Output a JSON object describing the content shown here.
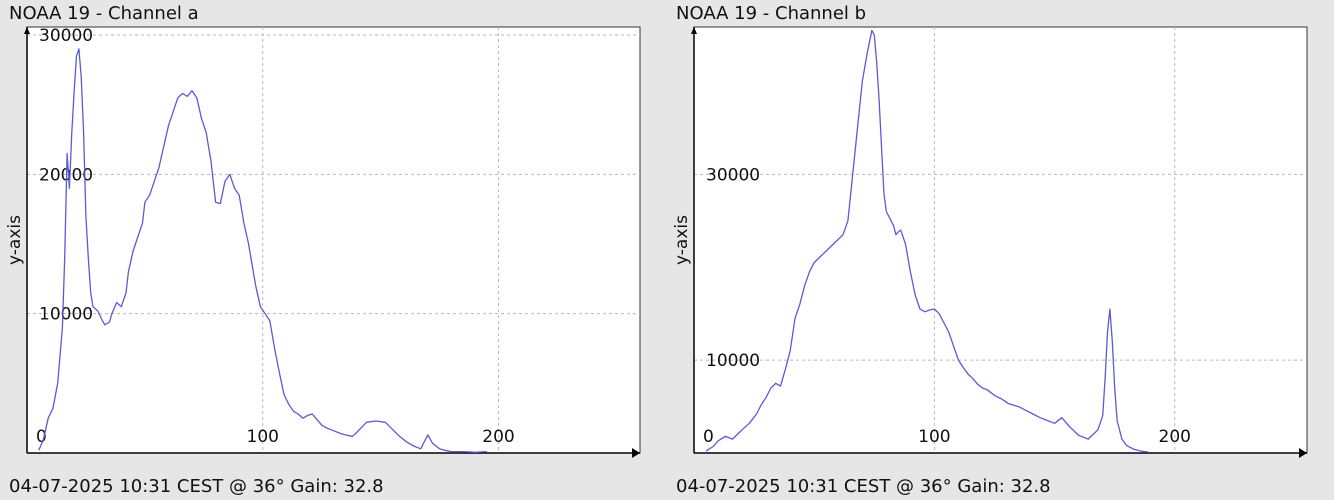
{
  "chart_data": [
    {
      "type": "line",
      "title": "NOAA 19 - Channel a",
      "ylabel": "y-axis",
      "footer": "04-07-2025 10:31 CEST @ 36° Gain: 32.8",
      "xlim": [
        0,
        260
      ],
      "ylim": [
        0,
        30000
      ],
      "xticks": [
        0,
        100,
        200
      ],
      "yticks": [
        10000,
        20000,
        30000
      ],
      "tick_labels": {
        "x0": "0",
        "x100": "100",
        "x200": "200",
        "y10000": "10000",
        "y20000": "20000",
        "y30000": "30000"
      },
      "grid": true,
      "line_color": "#5a5ad6",
      "series": [
        {
          "x": [
            5,
            7,
            9,
            11,
            13,
            15,
            16,
            17,
            18,
            19,
            20,
            21,
            22,
            23,
            24,
            25,
            26,
            27,
            28,
            30,
            32,
            33,
            35,
            36,
            38,
            40,
            42,
            43,
            45,
            47,
            49,
            50,
            52,
            54,
            56,
            58,
            60,
            62,
            64,
            66,
            68,
            70,
            72,
            74,
            76,
            77,
            78,
            80,
            82,
            84,
            86,
            88,
            90,
            92,
            94,
            96,
            97,
            99,
            101,
            103,
            105,
            107,
            109,
            111,
            113,
            115,
            117,
            119,
            121,
            123,
            125,
            127,
            130,
            133,
            135,
            138,
            140,
            144,
            148,
            152,
            155,
            158,
            161,
            164,
            167,
            170,
            172,
            175,
            177,
            180,
            185,
            190,
            195
          ],
          "y": [
            200,
            1000,
            2500,
            3200,
            5000,
            9000,
            14000,
            21500,
            19000,
            23000,
            26000,
            28500,
            29000,
            27000,
            23000,
            17000,
            14000,
            11500,
            10500,
            10200,
            9500,
            9200,
            9400,
            10000,
            10800,
            10500,
            11500,
            13000,
            14500,
            15500,
            16500,
            18000,
            18500,
            19500,
            20500,
            22000,
            23500,
            24500,
            25500,
            25800,
            25600,
            26000,
            25500,
            24000,
            23000,
            22000,
            21000,
            18000,
            17900,
            19500,
            20000,
            19000,
            18500,
            16500,
            15000,
            13000,
            12000,
            10500,
            10000,
            9500,
            7500,
            5800,
            4200,
            3500,
            3000,
            2800,
            2500,
            2700,
            2800,
            2400,
            2000,
            1800,
            1600,
            1400,
            1300,
            1200,
            1500,
            2200,
            2300,
            2200,
            1700,
            1200,
            800,
            500,
            300,
            1300,
            700,
            300,
            200,
            100,
            100,
            50,
            100
          ]
        }
      ]
    },
    {
      "type": "line",
      "title": "NOAA 19 - Channel b",
      "ylabel": "y-axis",
      "footer": "04-07-2025 10:31 CEST @ 36° Gain: 32.8",
      "xlim": [
        0,
        255
      ],
      "ylim": [
        0,
        45000
      ],
      "xticks": [
        0,
        100,
        200
      ],
      "yticks": [
        10000,
        30000
      ],
      "tick_labels": {
        "x0": "0",
        "x100": "100",
        "x200": "200",
        "y10000": "10000",
        "y30000": "30000"
      },
      "grid": true,
      "line_color": "#5a5ad6",
      "series": [
        {
          "x": [
            5,
            8,
            10,
            13,
            16,
            18,
            20,
            23,
            26,
            28,
            30,
            32,
            34,
            36,
            38,
            40,
            42,
            44,
            46,
            48,
            50,
            52,
            54,
            56,
            58,
            60,
            62,
            64,
            66,
            68,
            70,
            72,
            74,
            75,
            76,
            77,
            78,
            79,
            80,
            81,
            82,
            83,
            84,
            85,
            86,
            88,
            90,
            92,
            94,
            96,
            98,
            100,
            102,
            104,
            106,
            108,
            110,
            112,
            114,
            116,
            118,
            120,
            122,
            125,
            128,
            131,
            135,
            138,
            141,
            144,
            147,
            150,
            153,
            156,
            158,
            160,
            162,
            164,
            166,
            168,
            170,
            171,
            172,
            173,
            174,
            175,
            176,
            178,
            180,
            183,
            186,
            189
          ],
          "y": [
            200,
            700,
            1300,
            1800,
            1500,
            2000,
            2500,
            3200,
            4200,
            5200,
            6000,
            7000,
            7500,
            7200,
            9000,
            11000,
            14500,
            16000,
            18000,
            19500,
            20500,
            21000,
            21500,
            22000,
            22500,
            23000,
            23500,
            25000,
            30000,
            35000,
            40000,
            43000,
            45500,
            45000,
            42000,
            38000,
            33000,
            28000,
            26000,
            25500,
            25000,
            24500,
            23500,
            23800,
            24000,
            22500,
            19500,
            17000,
            15500,
            15200,
            15400,
            15500,
            15000,
            14000,
            13000,
            11500,
            10000,
            9200,
            8500,
            8000,
            7400,
            7000,
            6800,
            6200,
            5800,
            5300,
            5000,
            4600,
            4200,
            3800,
            3500,
            3200,
            3800,
            2900,
            2400,
            1900,
            1700,
            1500,
            2000,
            2500,
            4000,
            8000,
            13000,
            15500,
            12000,
            7000,
            3500,
            1500,
            800,
            400,
            200,
            100
          ]
        }
      ]
    }
  ]
}
